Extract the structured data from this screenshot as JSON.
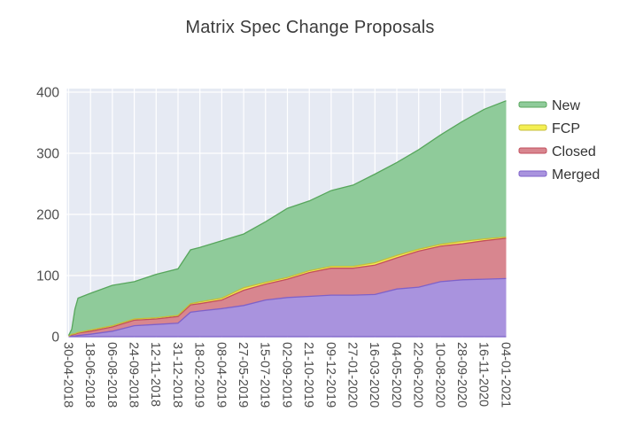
{
  "chart_data": {
    "type": "area",
    "stacked": true,
    "title": "Matrix Spec Change Proposals",
    "xlabel": "",
    "ylabel": "",
    "ylim": [
      0,
      400
    ],
    "grid": true,
    "grid_color": "#ffffff",
    "plot_bg": "#e6eaf3",
    "tick_label_color": "#4d4d4d",
    "legend_text_color": "#333333",
    "legend_position": "right-top-outside",
    "y_ticks": [
      "0",
      "100",
      "200",
      "300",
      "400"
    ],
    "x_tick_labels": [
      "30-04-2018",
      "18-06-2018",
      "06-08-2018",
      "24-09-2018",
      "12-11-2018",
      "31-12-2018",
      "18-02-2019",
      "08-04-2019",
      "27-05-2019",
      "15-07-2019",
      "02-09-2019",
      "21-10-2019",
      "09-12-2019",
      "27-01-2020",
      "16-03-2020",
      "04-05-2020",
      "22-06-2020",
      "10-08-2020",
      "28-09-2020",
      "16-11-2020",
      "04-01-2021"
    ],
    "sample_dates": [
      "30-04-2018",
      "07-05-2018",
      "14-05-2018",
      "21-05-2018",
      "18-06-2018",
      "06-08-2018",
      "24-09-2018",
      "12-11-2018",
      "31-12-2018",
      "28-01-2019",
      "18-02-2019",
      "08-04-2019",
      "27-05-2019",
      "15-07-2019",
      "02-09-2019",
      "21-10-2019",
      "09-12-2019",
      "27-01-2020",
      "16-03-2020",
      "04-05-2020",
      "22-06-2020",
      "10-08-2020",
      "28-09-2020",
      "16-11-2020",
      "04-01-2021"
    ],
    "sample_t": [
      0,
      0.0071,
      0.0143,
      0.0214,
      0.05,
      0.1,
      0.15,
      0.2,
      0.25,
      0.2786,
      0.3,
      0.35,
      0.4,
      0.45,
      0.5,
      0.55,
      0.6,
      0.65,
      0.7,
      0.75,
      0.8,
      0.85,
      0.9,
      0.95,
      1
    ],
    "series": [
      {
        "name": "Merged",
        "fill": "#a993de",
        "line": "#7e61c9",
        "values": [
          0,
          1,
          1,
          2,
          4,
          9,
          18,
          20,
          22,
          40,
          42,
          46,
          51,
          60,
          64,
          66,
          68,
          68,
          69,
          78,
          81,
          90,
          93,
          94,
          95
        ]
      },
      {
        "name": "Closed",
        "fill": "#d8868f",
        "line": "#c24f5c",
        "values": [
          1,
          2,
          3,
          4,
          5,
          7,
          9,
          9,
          11,
          12,
          12,
          14,
          25,
          26,
          30,
          39,
          44,
          44,
          48,
          51,
          59,
          58,
          59,
          63,
          66
        ]
      },
      {
        "name": "FCP",
        "fill": "#f4ef52",
        "line": "#c5bd3a",
        "values": [
          0,
          1,
          1,
          1,
          2,
          2,
          2,
          2,
          2,
          2,
          3,
          3,
          4,
          3,
          3,
          3,
          3,
          3,
          4,
          4,
          3,
          3,
          4,
          3,
          2
        ]
      },
      {
        "name": "New",
        "fill": "#8fcb9a",
        "line": "#57a65c",
        "values": [
          1,
          8,
          40,
          56,
          60,
          66,
          61,
          71,
          76,
          88,
          89,
          94,
          88,
          99,
          113,
          114,
          124,
          133,
          145,
          152,
          163,
          179,
          196,
          212,
          223
        ]
      }
    ],
    "legend_order": [
      "New",
      "FCP",
      "Closed",
      "Merged"
    ]
  }
}
